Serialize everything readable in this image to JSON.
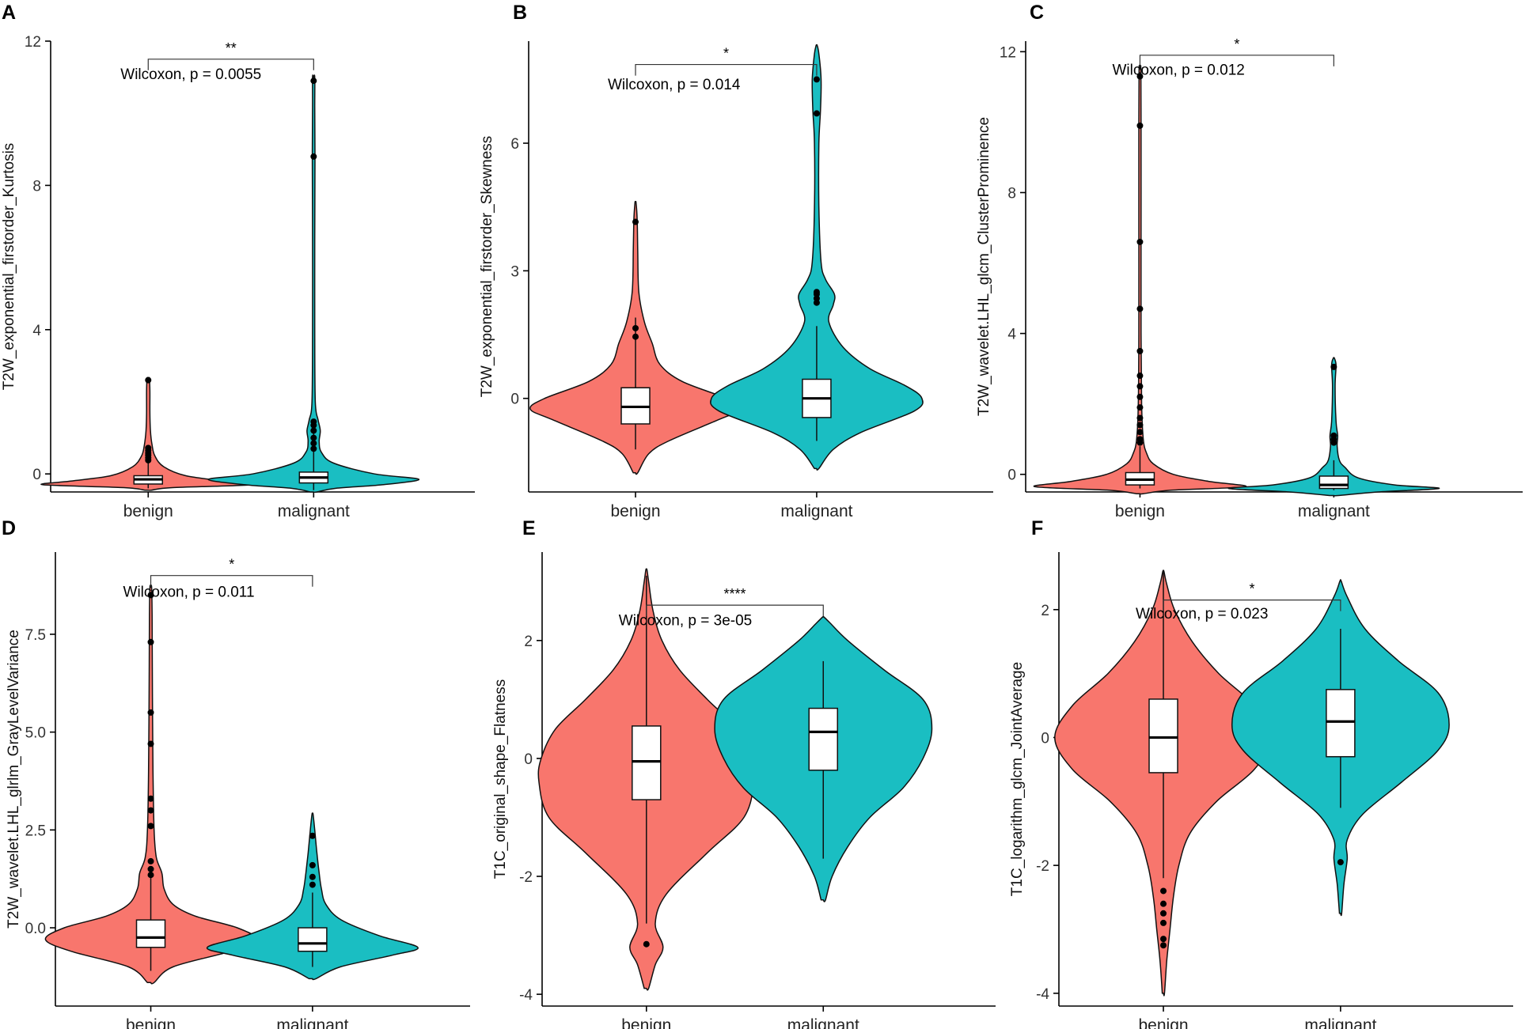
{
  "colors": {
    "benign": "#F8766D",
    "malignant": "#1ABEC2"
  },
  "chart_data": [
    {
      "panel": "A",
      "type": "violin",
      "ylabel": "T2W_exponential_firstorder_Kurtosis",
      "categories": [
        "benign",
        "malignant"
      ],
      "ylim": [
        -0.5,
        12.0
      ],
      "yticks": [
        0,
        4,
        8,
        12
      ],
      "ytick_labels": [
        "0",
        "4",
        "8",
        "12"
      ],
      "test_label": "Wilcoxon, p = 0.0055",
      "significance": "**",
      "bracket_y": 11.5,
      "test_y": 11.1,
      "groups": [
        {
          "name": "benign",
          "box": {
            "q1": -0.28,
            "median": -0.15,
            "q3": -0.05
          },
          "whisker": [
            -0.4,
            0.72
          ],
          "outliers": [
            0.38,
            0.45,
            0.52,
            0.58,
            0.65,
            0.72,
            2.6
          ],
          "density": [
            [
              -0.45,
              0.03
            ],
            [
              -0.38,
              0.22
            ],
            [
              -0.3,
              0.95
            ],
            [
              -0.2,
              0.7
            ],
            [
              -0.05,
              0.34
            ],
            [
              0.2,
              0.14
            ],
            [
              0.5,
              0.06
            ],
            [
              0.8,
              0.035
            ],
            [
              1.2,
              0.02
            ],
            [
              1.7,
              0.015
            ],
            [
              2.3,
              0.015
            ],
            [
              2.65,
              0.01
            ]
          ]
        },
        {
          "name": "malignant",
          "box": {
            "q1": -0.25,
            "median": -0.1,
            "q3": 0.05
          },
          "whisker": [
            -0.45,
            1.2
          ],
          "outliers": [
            0.7,
            0.85,
            1.0,
            1.2,
            1.35,
            1.45,
            8.8,
            10.9
          ],
          "density": [
            [
              -0.5,
              0.03
            ],
            [
              -0.4,
              0.2
            ],
            [
              -0.3,
              0.62
            ],
            [
              -0.15,
              0.95
            ],
            [
              0.0,
              0.55
            ],
            [
              0.3,
              0.18
            ],
            [
              0.6,
              0.07
            ],
            [
              0.9,
              0.05
            ],
            [
              1.2,
              0.06
            ],
            [
              1.5,
              0.04
            ],
            [
              2.0,
              0.015
            ],
            [
              4.0,
              0.01
            ],
            [
              6.5,
              0.01
            ],
            [
              8.8,
              0.012
            ],
            [
              10.2,
              0.01
            ],
            [
              11.0,
              0.01
            ]
          ]
        }
      ]
    },
    {
      "panel": "B",
      "type": "violin",
      "ylabel": "T2W_exponential_firstorder_Skewness",
      "categories": [
        "benign",
        "malignant"
      ],
      "ylim": [
        -2.2,
        8.4
      ],
      "yticks": [
        0,
        3,
        6
      ],
      "ytick_labels": [
        "0",
        "3",
        "6"
      ],
      "test_label": "Wilcoxon, p = 0.014",
      "significance": "*",
      "bracket_y": 7.85,
      "test_y": 7.4,
      "groups": [
        {
          "name": "benign",
          "box": {
            "q1": -0.6,
            "median": -0.2,
            "q3": 0.25
          },
          "whisker": [
            -1.2,
            1.9
          ],
          "outliers": [
            1.45,
            1.65,
            4.15
          ],
          "density": [
            [
              -1.75,
              0.02
            ],
            [
              -1.3,
              0.12
            ],
            [
              -1.0,
              0.3
            ],
            [
              -0.5,
              0.75
            ],
            [
              -0.25,
              0.95
            ],
            [
              0.0,
              0.82
            ],
            [
              0.4,
              0.42
            ],
            [
              0.8,
              0.22
            ],
            [
              1.3,
              0.15
            ],
            [
              1.8,
              0.08
            ],
            [
              2.5,
              0.03
            ],
            [
              3.5,
              0.02
            ],
            [
              4.2,
              0.015
            ],
            [
              4.6,
              0.005
            ]
          ]
        },
        {
          "name": "malignant",
          "box": {
            "q1": -0.45,
            "median": 0.0,
            "q3": 0.45
          },
          "whisker": [
            -1.0,
            1.7
          ],
          "outliers": [
            2.25,
            2.35,
            2.45,
            2.5,
            6.7,
            7.5
          ],
          "density": [
            [
              -1.65,
              0.02
            ],
            [
              -1.2,
              0.15
            ],
            [
              -0.8,
              0.4
            ],
            [
              -0.3,
              0.88
            ],
            [
              0.0,
              0.95
            ],
            [
              0.3,
              0.8
            ],
            [
              0.7,
              0.48
            ],
            [
              1.2,
              0.24
            ],
            [
              1.8,
              0.11
            ],
            [
              2.2,
              0.15
            ],
            [
              2.45,
              0.16
            ],
            [
              2.8,
              0.08
            ],
            [
              3.2,
              0.04
            ],
            [
              4.5,
              0.02
            ],
            [
              6.0,
              0.02
            ],
            [
              6.8,
              0.035
            ],
            [
              7.5,
              0.04
            ],
            [
              8.1,
              0.02
            ],
            [
              8.3,
              0.005
            ]
          ]
        }
      ]
    },
    {
      "panel": "C",
      "type": "violin",
      "ylabel": "T2W_wavelet.LHL_glcm_ClusterProminence",
      "categories": [
        "benign",
        "malignant"
      ],
      "ylim": [
        -0.5,
        12.3
      ],
      "yticks": [
        0,
        4,
        8,
        12
      ],
      "ytick_labels": [
        "0",
        "4",
        "8",
        "12"
      ],
      "test_label": "Wilcoxon, p = 0.012",
      "significance": "*",
      "bracket_y": 11.9,
      "test_y": 11.5,
      "groups": [
        {
          "name": "benign",
          "box": {
            "q1": -0.3,
            "median": -0.15,
            "q3": 0.05
          },
          "whisker": [
            -0.4,
            0.8
          ],
          "outliers": [
            0.9,
            1.0,
            1.2,
            1.4,
            1.6,
            1.9,
            2.2,
            2.5,
            2.8,
            3.5,
            4.7,
            6.6,
            9.9,
            11.3
          ],
          "density": [
            [
              -0.55,
              0.03
            ],
            [
              -0.45,
              0.28
            ],
            [
              -0.35,
              0.95
            ],
            [
              -0.2,
              0.62
            ],
            [
              0.0,
              0.3
            ],
            [
              0.3,
              0.12
            ],
            [
              0.6,
              0.06
            ],
            [
              1.0,
              0.03
            ],
            [
              2.0,
              0.015
            ],
            [
              4.0,
              0.01
            ],
            [
              7.0,
              0.01
            ],
            [
              10.0,
              0.01
            ],
            [
              11.5,
              0.008
            ]
          ]
        },
        {
          "name": "malignant",
          "box": {
            "q1": -0.4,
            "median": -0.3,
            "q3": -0.05
          },
          "whisker": [
            -0.45,
            0.4
          ],
          "outliers": [
            0.9,
            1.0,
            1.1,
            3.05
          ],
          "density": [
            [
              -0.6,
              0.04
            ],
            [
              -0.5,
              0.4
            ],
            [
              -0.4,
              0.95
            ],
            [
              -0.3,
              0.55
            ],
            [
              -0.1,
              0.22
            ],
            [
              0.2,
              0.1
            ],
            [
              0.4,
              0.05
            ],
            [
              0.8,
              0.03
            ],
            [
              1.1,
              0.035
            ],
            [
              1.5,
              0.02
            ],
            [
              2.5,
              0.012
            ],
            [
              3.1,
              0.02
            ],
            [
              3.3,
              0.005
            ]
          ]
        }
      ]
    },
    {
      "panel": "D",
      "type": "violin",
      "ylabel": "T2W_wavelet.LHL_glrlm_GrayLevelVariance",
      "categories": [
        "benign",
        "malignant"
      ],
      "ylim": [
        -2.0,
        9.6
      ],
      "yticks": [
        0.0,
        2.5,
        5.0,
        7.5
      ],
      "ytick_labels": [
        "0.0",
        "2.5",
        "5.0",
        "7.5"
      ],
      "test_label": "Wilcoxon, p = 0.011",
      "significance": "*",
      "bracket_y": 9.0,
      "test_y": 8.6,
      "groups": [
        {
          "name": "benign",
          "box": {
            "q1": -0.5,
            "median": -0.25,
            "q3": 0.2
          },
          "whisker": [
            -1.1,
            1.3
          ],
          "outliers": [
            1.35,
            1.5,
            1.7,
            2.6,
            3.0,
            3.3,
            4.7,
            5.5,
            7.3,
            8.5
          ],
          "density": [
            [
              -1.4,
              0.03
            ],
            [
              -1.0,
              0.2
            ],
            [
              -0.6,
              0.72
            ],
            [
              -0.3,
              0.95
            ],
            [
              0.0,
              0.78
            ],
            [
              0.3,
              0.4
            ],
            [
              0.6,
              0.2
            ],
            [
              1.0,
              0.12
            ],
            [
              1.4,
              0.1
            ],
            [
              1.8,
              0.05
            ],
            [
              2.5,
              0.03
            ],
            [
              4.0,
              0.02
            ],
            [
              6.0,
              0.015
            ],
            [
              8.0,
              0.012
            ],
            [
              8.7,
              0.008
            ]
          ]
        },
        {
          "name": "malignant",
          "box": {
            "q1": -0.6,
            "median": -0.4,
            "q3": 0.0
          },
          "whisker": [
            -1.0,
            0.9
          ],
          "outliers": [
            1.1,
            1.3,
            1.6,
            2.35
          ],
          "density": [
            [
              -1.3,
              0.03
            ],
            [
              -1.0,
              0.25
            ],
            [
              -0.7,
              0.72
            ],
            [
              -0.5,
              0.95
            ],
            [
              -0.2,
              0.6
            ],
            [
              0.2,
              0.26
            ],
            [
              0.6,
              0.12
            ],
            [
              1.0,
              0.08
            ],
            [
              1.4,
              0.06
            ],
            [
              1.9,
              0.04
            ],
            [
              2.5,
              0.02
            ],
            [
              2.9,
              0.005
            ]
          ]
        }
      ]
    },
    {
      "panel": "E",
      "type": "violin",
      "ylabel": "T1C_original_shape_Flatness",
      "categories": [
        "benign",
        "malignant"
      ],
      "ylim": [
        -4.2,
        3.5
      ],
      "yticks": [
        -4,
        -2,
        0,
        2
      ],
      "ytick_labels": [
        "-4",
        "-2",
        "0",
        "2"
      ],
      "test_label": "Wilcoxon, p = 3e-05",
      "significance": "****",
      "bracket_y": 2.6,
      "test_y": 2.35,
      "groups": [
        {
          "name": "benign",
          "box": {
            "q1": -0.7,
            "median": -0.05,
            "q3": 0.55
          },
          "whisker": [
            -2.8,
            3.1
          ],
          "outliers": [
            -3.15
          ],
          "density": [
            [
              -3.9,
              0.02
            ],
            [
              -3.5,
              0.08
            ],
            [
              -3.2,
              0.15
            ],
            [
              -2.8,
              0.08
            ],
            [
              -2.3,
              0.18
            ],
            [
              -1.6,
              0.55
            ],
            [
              -1.0,
              0.88
            ],
            [
              -0.4,
              0.97
            ],
            [
              0.0,
              0.95
            ],
            [
              0.5,
              0.82
            ],
            [
              1.0,
              0.55
            ],
            [
              1.5,
              0.3
            ],
            [
              2.0,
              0.14
            ],
            [
              2.5,
              0.06
            ],
            [
              3.0,
              0.02
            ],
            [
              3.2,
              0.005
            ]
          ]
        },
        {
          "name": "malignant",
          "box": {
            "q1": -0.2,
            "median": 0.45,
            "q3": 0.85
          },
          "whisker": [
            -1.7,
            1.65
          ],
          "outliers": [],
          "density": [
            [
              -2.4,
              0.02
            ],
            [
              -2.0,
              0.08
            ],
            [
              -1.5,
              0.22
            ],
            [
              -1.0,
              0.42
            ],
            [
              -0.5,
              0.72
            ],
            [
              0.0,
              0.9
            ],
            [
              0.5,
              0.98
            ],
            [
              1.0,
              0.9
            ],
            [
              1.5,
              0.55
            ],
            [
              2.0,
              0.22
            ],
            [
              2.3,
              0.06
            ],
            [
              2.4,
              0.005
            ]
          ]
        }
      ]
    },
    {
      "panel": "F",
      "type": "violin",
      "ylabel": "T1C_logarithm_glcm_JointAverage",
      "categories": [
        "benign",
        "malignant"
      ],
      "ylim": [
        -4.2,
        2.9
      ],
      "yticks": [
        -4,
        -2,
        0,
        2
      ],
      "ytick_labels": [
        "-4",
        "-2",
        "0",
        "2"
      ],
      "test_label": "Wilcoxon, p = 0.023",
      "significance": "*",
      "bracket_y": 2.15,
      "test_y": 1.95,
      "groups": [
        {
          "name": "benign",
          "box": {
            "q1": -0.55,
            "median": 0.0,
            "q3": 0.6
          },
          "whisker": [
            -2.2,
            2.6
          ],
          "outliers": [
            -2.4,
            -2.6,
            -2.75,
            -2.9,
            -3.15,
            -3.25
          ],
          "density": [
            [
              -4.0,
              0.01
            ],
            [
              -3.5,
              0.03
            ],
            [
              -3.0,
              0.06
            ],
            [
              -2.5,
              0.09
            ],
            [
              -2.0,
              0.14
            ],
            [
              -1.5,
              0.24
            ],
            [
              -1.0,
              0.48
            ],
            [
              -0.5,
              0.82
            ],
            [
              0.0,
              0.98
            ],
            [
              0.5,
              0.82
            ],
            [
              1.0,
              0.5
            ],
            [
              1.5,
              0.26
            ],
            [
              2.0,
              0.1
            ],
            [
              2.4,
              0.03
            ],
            [
              2.6,
              0.005
            ]
          ]
        },
        {
          "name": "malignant",
          "box": {
            "q1": -0.3,
            "median": 0.25,
            "q3": 0.75
          },
          "whisker": [
            -1.1,
            1.7
          ],
          "outliers": [
            -1.95
          ],
          "density": [
            [
              -2.75,
              0.01
            ],
            [
              -2.3,
              0.03
            ],
            [
              -1.9,
              0.06
            ],
            [
              -1.6,
              0.06
            ],
            [
              -1.2,
              0.2
            ],
            [
              -0.7,
              0.55
            ],
            [
              -0.2,
              0.88
            ],
            [
              0.2,
              0.98
            ],
            [
              0.7,
              0.88
            ],
            [
              1.2,
              0.52
            ],
            [
              1.7,
              0.22
            ],
            [
              2.2,
              0.06
            ],
            [
              2.45,
              0.005
            ]
          ]
        }
      ]
    }
  ]
}
